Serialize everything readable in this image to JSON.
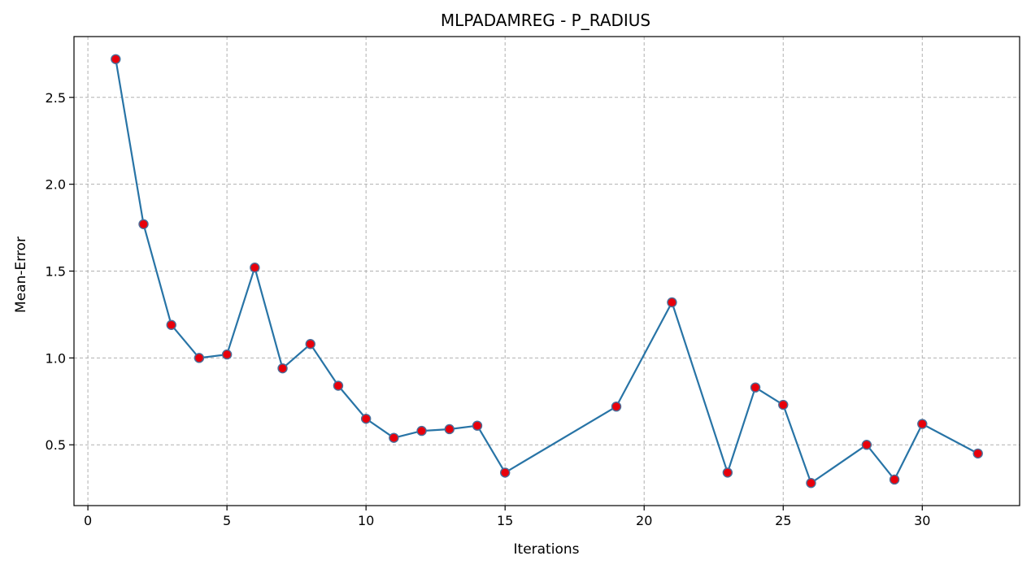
{
  "chart_data": {
    "type": "line",
    "title": "MLPADAMREG - P_RADIUS",
    "xlabel": "Iterations",
    "ylabel": "Mean-Error",
    "xlim": [
      -0.5,
      33.5
    ],
    "ylim": [
      0.15,
      2.85
    ],
    "xticks": [
      0,
      5,
      10,
      15,
      20,
      25,
      30
    ],
    "yticks": [
      0.5,
      1.0,
      1.5,
      2.0,
      2.5
    ],
    "ytick_labels": [
      "0.5",
      "1.0",
      "1.5",
      "2.0",
      "2.5"
    ],
    "grid": true,
    "series": [
      {
        "x": [
          1,
          2,
          3,
          4,
          5,
          6,
          7,
          8,
          9,
          10,
          11,
          12,
          13,
          14,
          15,
          19,
          21,
          23,
          24,
          25,
          26,
          28,
          29,
          30,
          32
        ],
        "y": [
          2.72,
          1.77,
          1.19,
          1.0,
          1.02,
          1.52,
          0.94,
          1.08,
          0.84,
          0.65,
          0.54,
          0.58,
          0.59,
          0.61,
          0.34,
          0.72,
          1.32,
          0.34,
          0.83,
          0.73,
          0.28,
          0.5,
          0.3,
          0.62,
          0.45
        ],
        "line_color": "#2874a6",
        "marker_color": "#e8000b",
        "marker_edge_color": "#4a6f9a"
      }
    ]
  }
}
